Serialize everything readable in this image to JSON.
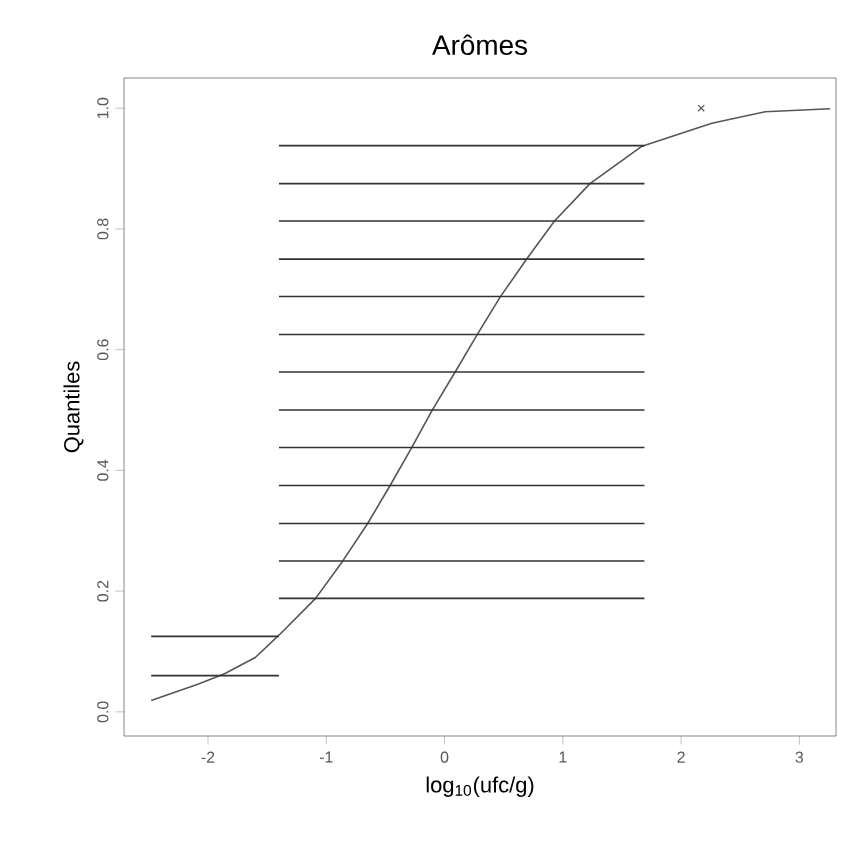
{
  "chart_data": {
    "type": "line",
    "title": "Arômes",
    "xlabel": "log$_{10}$(ufc/g)",
    "ylabel": "Quantiles",
    "xlim": [
      -2.71,
      3.31
    ],
    "ylim": [
      -0.04,
      1.05
    ],
    "xticks": [
      -2,
      -1,
      0,
      1,
      2,
      3
    ],
    "yticks": [
      {
        "value": 0,
        "label": "0.0"
      },
      {
        "value": 0.2,
        "label": "0.2"
      },
      {
        "value": 0.4,
        "label": "0.4"
      },
      {
        "value": 0.6,
        "label": "0.6"
      },
      {
        "value": 0.8,
        "label": "0.8"
      },
      {
        "value": 1,
        "label": "1.0"
      }
    ],
    "series": [
      {
        "color": "#555555",
        "x": [
          -2.48,
          -2.08,
          -1.86,
          -1.6,
          -1.4,
          -1.09,
          -0.86,
          -0.65,
          -0.46,
          -0.28,
          -0.1,
          0.09,
          0.28,
          0.47,
          0.69,
          0.93,
          1.23,
          1.67,
          2.26,
          2.71,
          3.26
        ],
        "values": [
          0.019,
          0.046,
          0.063,
          0.09,
          0.127,
          0.188,
          0.25,
          0.312,
          0.375,
          0.437,
          0.501,
          0.563,
          0.626,
          0.687,
          0.749,
          0.813,
          0.875,
          0.937,
          0.975,
          0.994,
          0.999
        ]
      },
      {
        "type": "line",
        "color": "#333333",
        "x": [
          -2.48,
          -1.4
        ],
        "values": [
          0.06,
          0.06
        ]
      },
      {
        "type": "line",
        "color": "#333333",
        "x": [
          -2.48,
          -1.4
        ],
        "values": [
          0.125,
          0.125
        ]
      },
      {
        "type": "line",
        "color": "#333333",
        "x": [
          -1.4,
          1.69
        ],
        "values": [
          0.188,
          0.188
        ]
      },
      {
        "type": "line",
        "color": "#333333",
        "x": [
          -1.4,
          1.69
        ],
        "values": [
          0.25,
          0.25
        ]
      },
      {
        "type": "line",
        "color": "#333333",
        "x": [
          -1.4,
          1.69
        ],
        "values": [
          0.312,
          0.312
        ]
      },
      {
        "type": "line",
        "color": "#333333",
        "x": [
          -1.4,
          1.69
        ],
        "values": [
          0.375,
          0.375
        ]
      },
      {
        "type": "line",
        "color": "#333333",
        "x": [
          -1.4,
          1.69
        ],
        "values": [
          0.438,
          0.438
        ]
      },
      {
        "type": "line",
        "color": "#333333",
        "x": [
          -1.4,
          1.69
        ],
        "values": [
          0.5,
          0.5
        ]
      },
      {
        "type": "line",
        "color": "#333333",
        "x": [
          -1.4,
          1.69
        ],
        "values": [
          0.563,
          0.563
        ]
      },
      {
        "type": "line",
        "color": "#333333",
        "x": [
          -1.4,
          1.69
        ],
        "values": [
          0.625,
          0.625
        ]
      },
      {
        "type": "line",
        "color": "#333333",
        "x": [
          -1.4,
          1.69
        ],
        "values": [
          0.688,
          0.688
        ]
      },
      {
        "type": "line",
        "color": "#333333",
        "x": [
          -1.4,
          1.69
        ],
        "values": [
          0.75,
          0.75
        ]
      },
      {
        "type": "line",
        "color": "#333333",
        "x": [
          -1.4,
          1.69
        ],
        "values": [
          0.813,
          0.813
        ]
      },
      {
        "type": "line",
        "color": "#333333",
        "x": [
          -1.4,
          1.69
        ],
        "values": [
          0.875,
          0.875
        ]
      },
      {
        "type": "line",
        "color": "#333333",
        "x": [
          -1.4,
          1.69
        ],
        "values": [
          0.938,
          0.938
        ]
      },
      {
        "type": "scatter",
        "marker": "cross",
        "color": "#555555",
        "x": [
          2.17
        ],
        "values": [
          1.0
        ]
      }
    ]
  }
}
